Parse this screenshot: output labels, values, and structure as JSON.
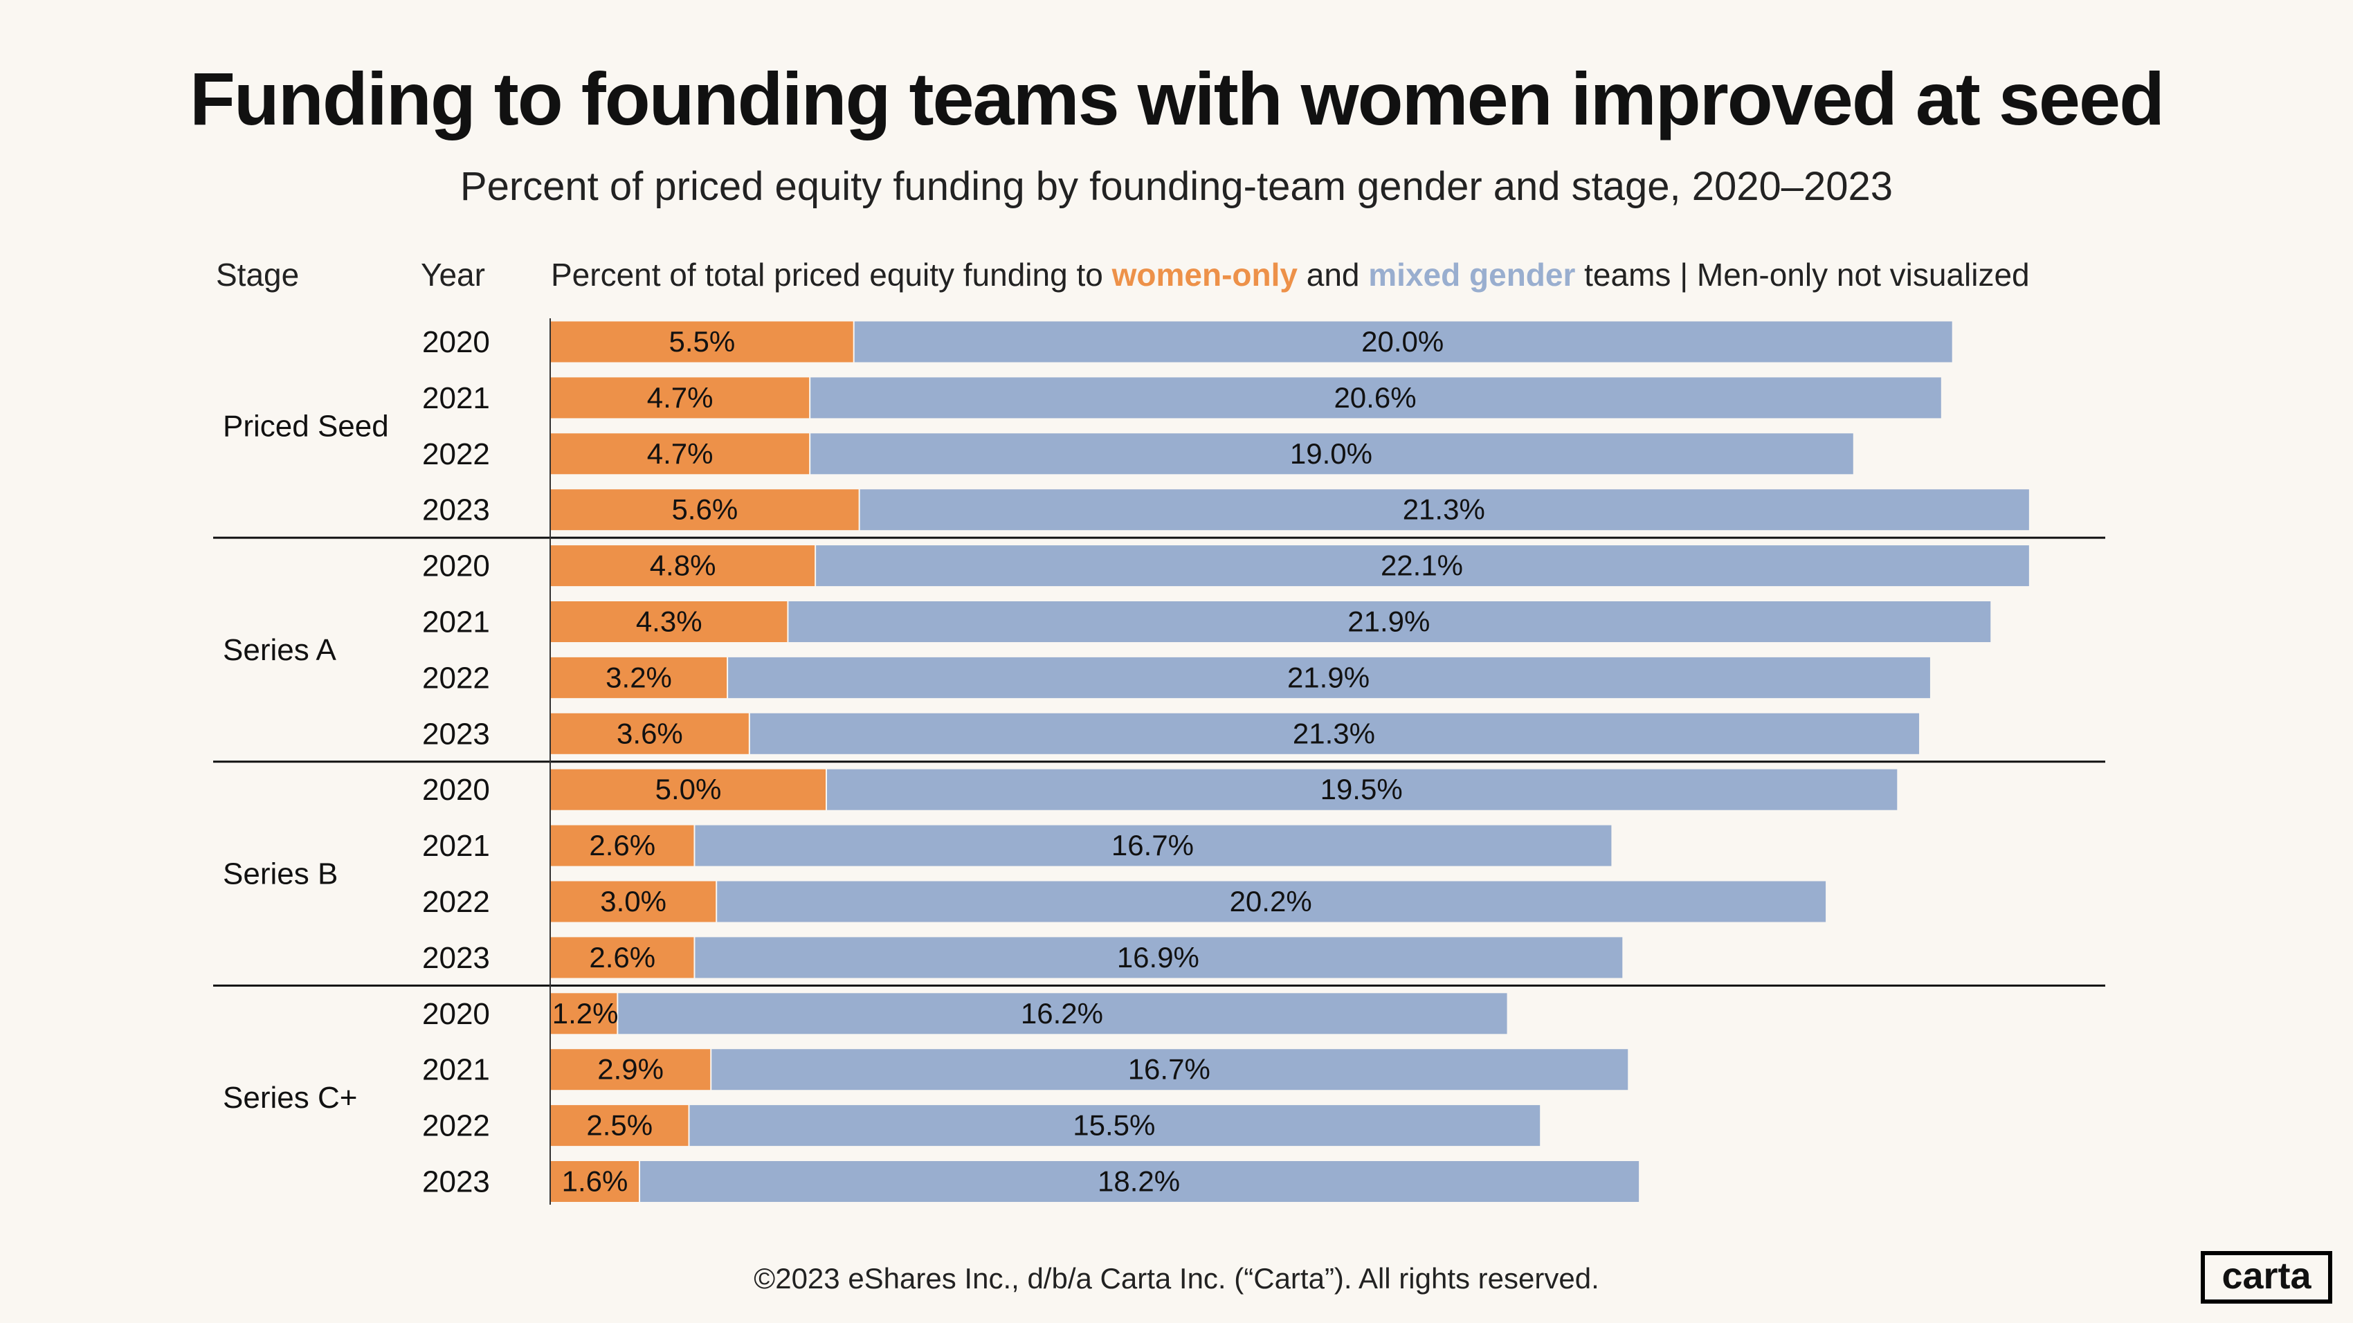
{
  "title": "Funding to founding teams with women improved at seed",
  "subtitle": "Percent of priced equity funding by founding-team gender and stage, 2020–2023",
  "header": {
    "stage": "Stage",
    "year": "Year",
    "prefix": "Percent of total priced equity funding to ",
    "women_only": "women-only",
    "and": " and ",
    "mixed": "mixed gender",
    "suffix": " teams | Men-only not visualized"
  },
  "footer": "©2023 eShares Inc., d/b/a Carta Inc. (“Carta”). All rights reserved.",
  "logo": "carta",
  "colors": {
    "women_only": "#ED9149",
    "mixed_gender": "#99AECF",
    "background": "#FAF7F2"
  },
  "chart_data": {
    "type": "bar",
    "orientation": "horizontal",
    "stacked": true,
    "unit": "%",
    "series": [
      {
        "name": "women-only",
        "color": "#ED9149"
      },
      {
        "name": "mixed gender",
        "color": "#99AECF"
      }
    ],
    "groups": [
      {
        "stage": "Priced Seed",
        "rows": [
          {
            "year": "2020",
            "women_only": 5.5,
            "mixed": 20.0
          },
          {
            "year": "2021",
            "women_only": 4.7,
            "mixed": 20.6
          },
          {
            "year": "2022",
            "women_only": 4.7,
            "mixed": 19.0
          },
          {
            "year": "2023",
            "women_only": 5.6,
            "mixed": 21.3
          }
        ]
      },
      {
        "stage": "Series A",
        "rows": [
          {
            "year": "2020",
            "women_only": 4.8,
            "mixed": 22.1
          },
          {
            "year": "2021",
            "women_only": 4.3,
            "mixed": 21.9
          },
          {
            "year": "2022",
            "women_only": 3.2,
            "mixed": 21.9
          },
          {
            "year": "2023",
            "women_only": 3.6,
            "mixed": 21.3
          }
        ]
      },
      {
        "stage": "Series B",
        "rows": [
          {
            "year": "2020",
            "women_only": 5.0,
            "mixed": 19.5
          },
          {
            "year": "2021",
            "women_only": 2.6,
            "mixed": 16.7
          },
          {
            "year": "2022",
            "women_only": 3.0,
            "mixed": 20.2
          },
          {
            "year": "2023",
            "women_only": 2.6,
            "mixed": 16.9
          }
        ]
      },
      {
        "stage": "Series C+",
        "rows": [
          {
            "year": "2020",
            "women_only": 1.2,
            "mixed": 16.2
          },
          {
            "year": "2021",
            "women_only": 2.9,
            "mixed": 16.7
          },
          {
            "year": "2022",
            "women_only": 2.5,
            "mixed": 15.5
          },
          {
            "year": "2023",
            "women_only": 1.6,
            "mixed": 18.2
          }
        ]
      }
    ]
  }
}
